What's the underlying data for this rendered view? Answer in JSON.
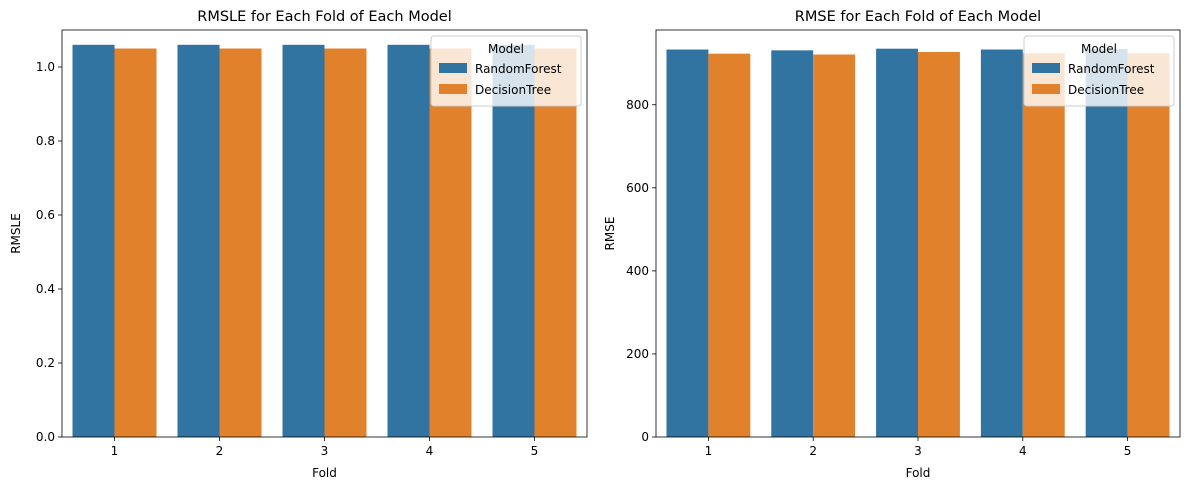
{
  "chart_data": [
    {
      "type": "bar",
      "title": "RMSLE for Each Fold of Each Model",
      "xlabel": "Fold",
      "ylabel": "RMSLE",
      "categories": [
        "1",
        "2",
        "3",
        "4",
        "5"
      ],
      "series": [
        {
          "name": "RandomForest",
          "values": [
            1.06,
            1.06,
            1.06,
            1.06,
            1.06
          ],
          "color": "#3274a1"
        },
        {
          "name": "DecisionTree",
          "values": [
            1.05,
            1.05,
            1.05,
            1.05,
            1.05
          ],
          "color": "#e1812c"
        }
      ],
      "ylim": [
        0,
        1.1
      ],
      "yticks": [
        0.0,
        0.2,
        0.4,
        0.6,
        0.8,
        1.0
      ],
      "ytick_labels": [
        "0.0",
        "0.2",
        "0.4",
        "0.6",
        "0.8",
        "1.0"
      ],
      "grid": false,
      "legend": {
        "title": "Model",
        "placement": "top-right"
      }
    },
    {
      "type": "bar",
      "title": "RMSE for Each Fold of Each Model",
      "xlabel": "Fold",
      "ylabel": "RMSE",
      "categories": [
        "1",
        "2",
        "3",
        "4",
        "5"
      ],
      "series": [
        {
          "name": "RandomForest",
          "values": [
            933,
            931,
            935,
            933,
            934
          ],
          "color": "#3274a1"
        },
        {
          "name": "DecisionTree",
          "values": [
            923,
            921,
            927,
            924,
            924
          ],
          "color": "#e1812c"
        }
      ],
      "ylim": [
        0,
        980
      ],
      "yticks": [
        0,
        200,
        400,
        600,
        800
      ],
      "ytick_labels": [
        "0",
        "200",
        "400",
        "600",
        "800"
      ],
      "grid": false,
      "legend": {
        "title": "Model",
        "placement": "top-right"
      }
    }
  ]
}
